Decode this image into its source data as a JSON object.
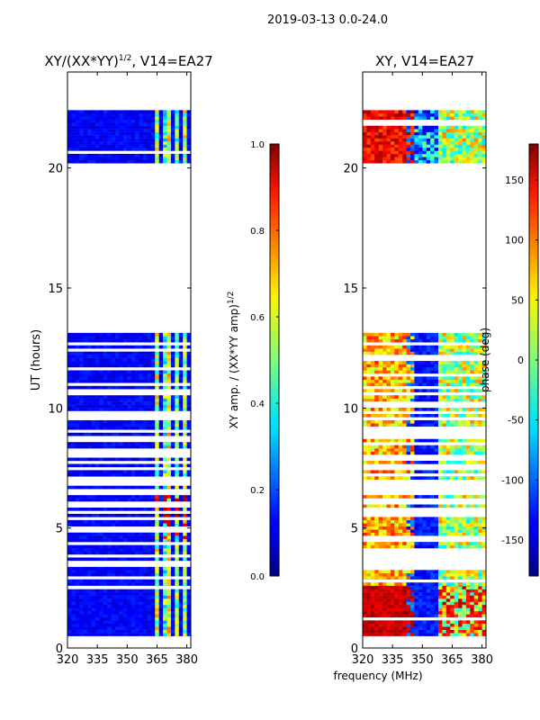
{
  "suptitle": "2019-03-13 0.0-24.0",
  "xlabel": "frequency (MHz)",
  "colors": {
    "nan": "#ffffff",
    "frame": "#000000"
  },
  "chart_data": [
    {
      "type": "heatmap",
      "title_main": "XY/(XX*YY)",
      "title_sup": "1/2",
      "title_tail": ", V14=EA27",
      "xlabel": "frequency (MHz)",
      "ylabel": "UT (hours)",
      "xlim": [
        320,
        382
      ],
      "ylim": [
        0,
        24
      ],
      "xticks": [
        320,
        335,
        350,
        365,
        380
      ],
      "yticks": [
        0,
        5,
        10,
        15,
        20
      ],
      "colorbar": {
        "label_main": "XY amp. / (XX*YY amp)",
        "label_sup": "1/2",
        "range": [
          0.0,
          1.0
        ],
        "ticks": [
          "0.0",
          "0.2",
          "0.4",
          "0.6",
          "0.8",
          "1.0"
        ]
      },
      "data_blocks": [
        {
          "ut": [
            0.5,
            2.6
          ],
          "note": "blue background, green/yellow features 363-378 MHz"
        },
        {
          "ut": [
            2.6,
            13.1
          ],
          "note": "many flagged rows; blue background with red/yellow near 363-378 MHz around UT 5-6"
        },
        {
          "ut": [
            20.2,
            22.3
          ],
          "note": "blue background, cyan/yellow features 363-378 MHz"
        }
      ]
    },
    {
      "type": "heatmap",
      "title": "XY, V14=EA27",
      "xlabel": "frequency (MHz)",
      "xlim": [
        320,
        382
      ],
      "ylim": [
        0,
        24
      ],
      "xticks": [
        320,
        335,
        350,
        365,
        380
      ],
      "yticks": [
        0,
        5,
        10,
        15,
        20
      ],
      "colorbar": {
        "label": "phase (deg)",
        "range": [
          -180,
          180
        ],
        "ticks": [
          "-150",
          "-100",
          "-50",
          "0",
          "50",
          "100",
          "150"
        ]
      },
      "data_blocks": [
        {
          "ut": [
            0.5,
            2.6
          ],
          "note": "red phase near 320-340 MHz, mixed colours 358-382 MHz"
        },
        {
          "ut": [
            2.6,
            13.1
          ],
          "note": "yellow/orange band 320-345 MHz, cyan/green 358-382 MHz, blue elsewhere"
        },
        {
          "ut": [
            20.2,
            22.3
          ],
          "note": "red/orange band 320-345 MHz, cyan/yellow 358-382 MHz"
        }
      ]
    }
  ]
}
